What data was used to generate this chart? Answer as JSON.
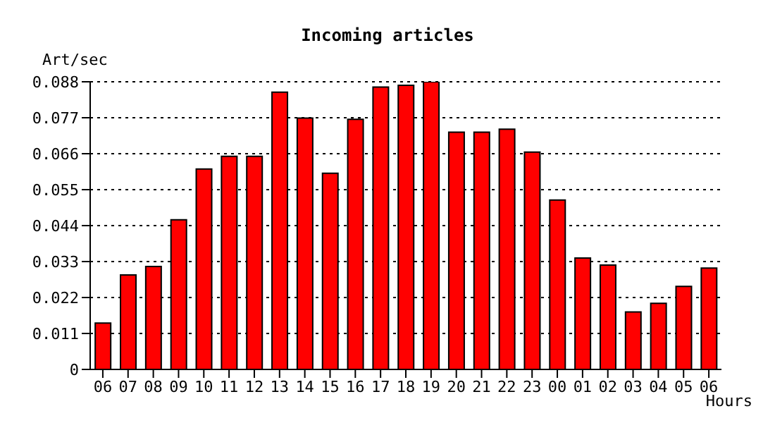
{
  "chart_data": {
    "type": "bar",
    "title": "Incoming articles",
    "ylabel": "Art/sec",
    "xlabel": "Hours",
    "categories": [
      "06",
      "07",
      "08",
      "09",
      "10",
      "11",
      "12",
      "13",
      "14",
      "15",
      "16",
      "17",
      "18",
      "19",
      "20",
      "21",
      "22",
      "23",
      "00",
      "01",
      "02",
      "03",
      "04",
      "05",
      "06"
    ],
    "values": [
      0.0142,
      0.0289,
      0.0315,
      0.0458,
      0.0613,
      0.0652,
      0.0652,
      0.0848,
      0.0769,
      0.06,
      0.0765,
      0.0864,
      0.0869,
      0.088,
      0.0726,
      0.0726,
      0.0735,
      0.0665,
      0.0518,
      0.0341,
      0.0319,
      0.0176,
      0.0202,
      0.0254,
      0.031
    ],
    "color": "#ff0000",
    "ylim": [
      0,
      0.088
    ],
    "yticks": [
      0,
      0.011,
      0.022,
      0.033,
      0.044,
      0.055,
      0.066,
      0.077,
      0.088
    ],
    "grid": "y"
  }
}
